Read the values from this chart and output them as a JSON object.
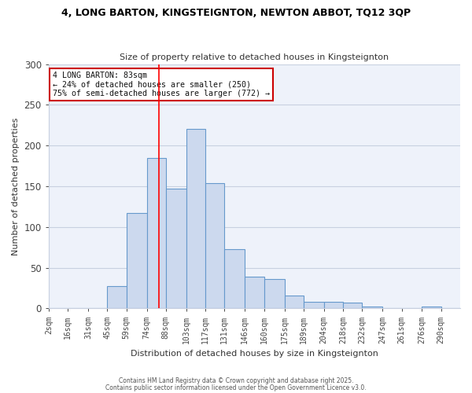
{
  "title": "4, LONG BARTON, KINGSTEIGNTON, NEWTON ABBOT, TQ12 3QP",
  "subtitle": "Size of property relative to detached houses in Kingsteignton",
  "xlabel": "Distribution of detached houses by size in Kingsteignton",
  "ylabel": "Number of detached properties",
  "bar_labels": [
    "2sqm",
    "16sqm",
    "31sqm",
    "45sqm",
    "59sqm",
    "74sqm",
    "88sqm",
    "103sqm",
    "117sqm",
    "131sqm",
    "146sqm",
    "160sqm",
    "175sqm",
    "189sqm",
    "204sqm",
    "218sqm",
    "232sqm",
    "247sqm",
    "261sqm",
    "276sqm",
    "290sqm"
  ],
  "bar_values": [
    0,
    0,
    0,
    27,
    117,
    185,
    147,
    220,
    154,
    73,
    39,
    36,
    16,
    8,
    8,
    7,
    2,
    0,
    0,
    2,
    0
  ],
  "bar_color": "#ccd9ee",
  "bar_edge_color": "#6699cc",
  "ylim": [
    0,
    300
  ],
  "yticks": [
    0,
    50,
    100,
    150,
    200,
    250,
    300
  ],
  "property_line_value": 83,
  "bin_starts": [
    2,
    16,
    31,
    45,
    59,
    74,
    88,
    103,
    117,
    131,
    146,
    160,
    175,
    189,
    204,
    218,
    232,
    247,
    261,
    276,
    290,
    304
  ],
  "annotation_title": "4 LONG BARTON: 83sqm",
  "annotation_line1": "← 24% of detached houses are smaller (250)",
  "annotation_line2": "75% of semi-detached houses are larger (772) →",
  "annotation_box_color": "#ffffff",
  "annotation_box_edge_color": "#cc0000",
  "footnote1": "Contains HM Land Registry data © Crown copyright and database right 2025.",
  "footnote2": "Contains public sector information licensed under the Open Government Licence v3.0.",
  "background_color": "#ffffff",
  "plot_background_color": "#eef2fa",
  "grid_color": "#c8d0e0",
  "title_color": "#000000",
  "subtitle_color": "#333333",
  "label_color": "#333333",
  "tick_color": "#444444"
}
